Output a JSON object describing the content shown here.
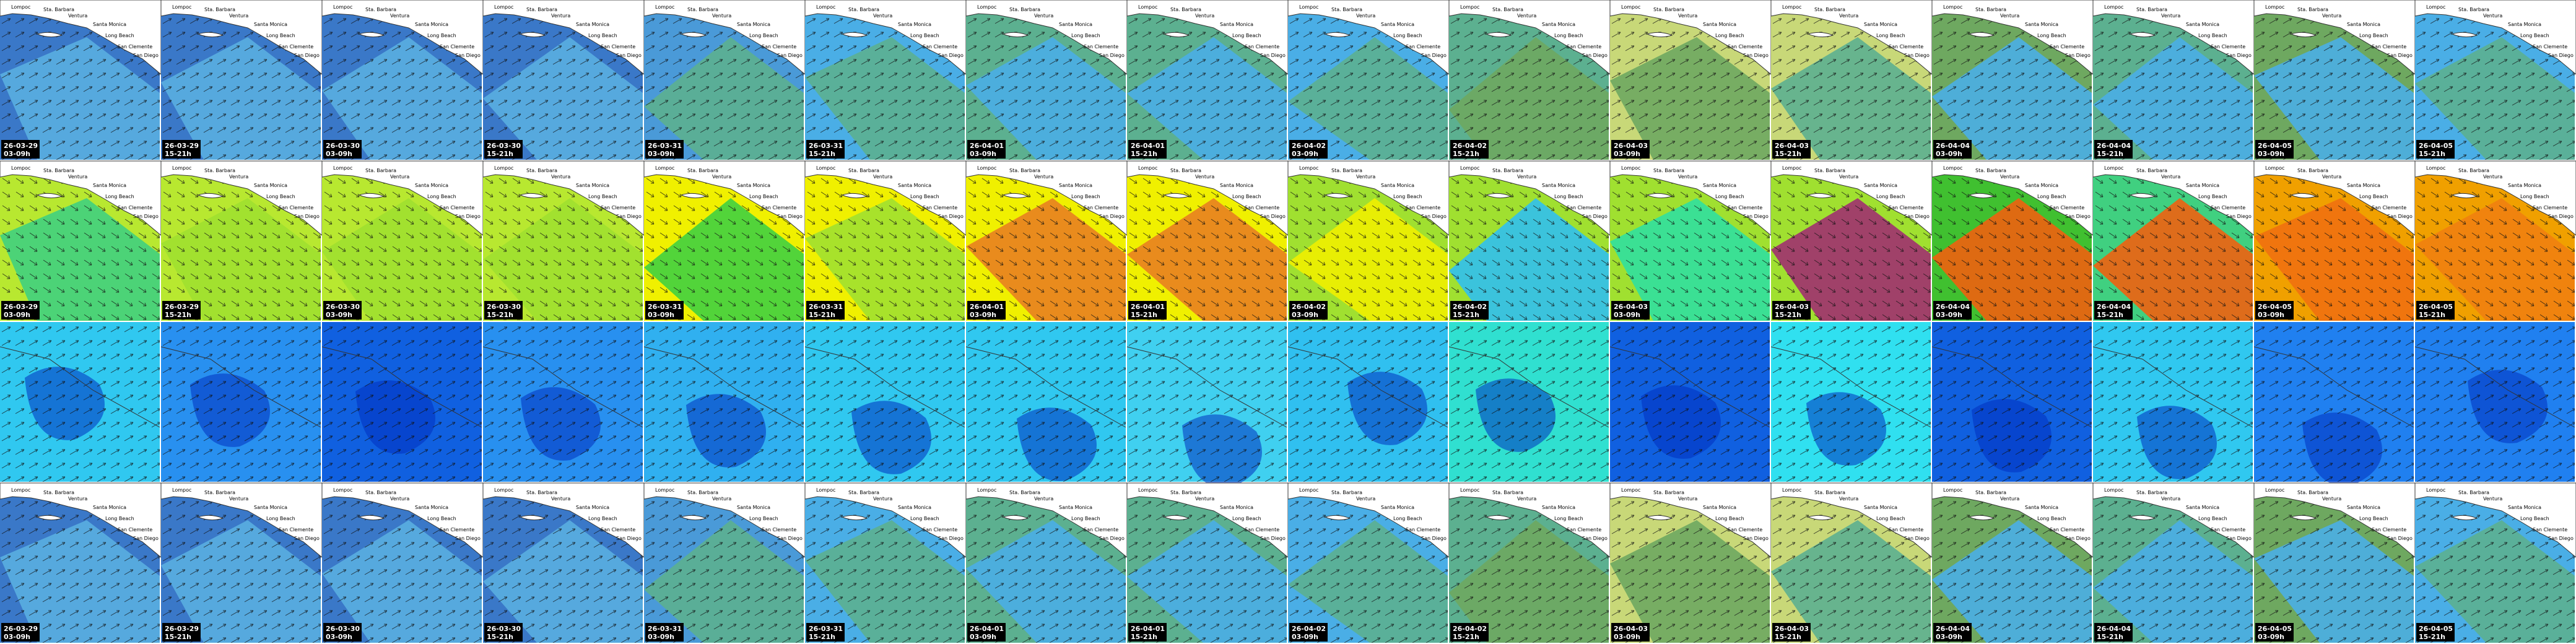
{
  "dates": [
    "26-03-29",
    "26-03-29",
    "26-03-30",
    "26-03-30",
    "26-03-31",
    "26-03-31",
    "26-04-01",
    "26-04-01",
    "26-04-02",
    "26-04-02",
    "26-04-03",
    "26-04-03",
    "26-04-04",
    "26-04-04",
    "26-04-05",
    "26-04-05"
  ],
  "times": [
    "03-09h",
    "15-21h",
    "03-09h",
    "15-21h",
    "03-09h",
    "15-21h",
    "03-09h",
    "15-21h",
    "03-09h",
    "15-21h",
    "03-09h",
    "15-21h",
    "03-09h",
    "15-21h",
    "03-09h",
    "15-21h"
  ],
  "places": [
    "Lompoc",
    "Sta. Barbara",
    "Ventura",
    "Santa Monica",
    "Long Beach",
    "San Clemente",
    "San Diego"
  ]
}
